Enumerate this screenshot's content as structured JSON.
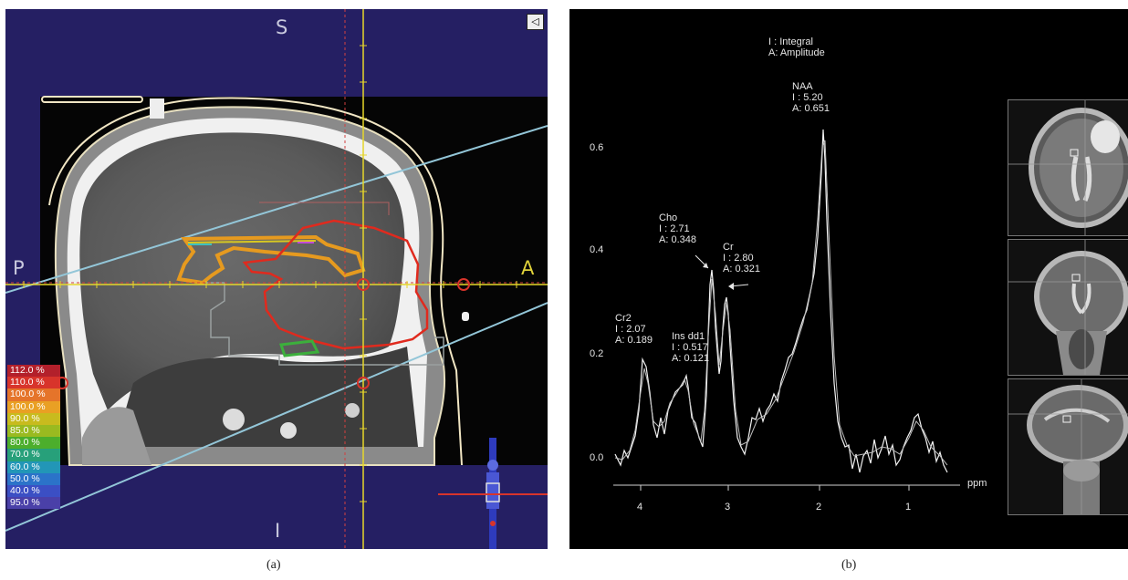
{
  "panel_a": {
    "orientation": {
      "superior": "S",
      "inferior": "I",
      "posterior": "P",
      "anterior": "A"
    },
    "collapse_icon": "◁",
    "dose_legend": [
      {
        "label": "112.0 %",
        "color": "#b3202b"
      },
      {
        "label": "110.0 %",
        "color": "#d8342b"
      },
      {
        "label": "100.0 %",
        "color": "#e5742a"
      },
      {
        "label": "100.0 %",
        "color": "#e9a024"
      },
      {
        "label": "90.0 %",
        "color": "#c8bb1e"
      },
      {
        "label": "85.0 %",
        "color": "#9aba20"
      },
      {
        "label": "80.0 %",
        "color": "#4cae2c"
      },
      {
        "label": "70.0 %",
        "color": "#27a07a"
      },
      {
        "label": "60.0 %",
        "color": "#2296b7"
      },
      {
        "label": "50.0 %",
        "color": "#2b73c9"
      },
      {
        "label": "40.0 %",
        "color": "#3b4fc4"
      },
      {
        "label": "95.0 %",
        "color": "#4a40a8"
      }
    ],
    "caption": "(a)"
  },
  "panel_b": {
    "legend_lines": [
      "I : Integral",
      "A: Amplitude"
    ],
    "peaks": [
      {
        "name": "NAA",
        "integral": "I : 5.20",
        "amplitude": "A: 0.651"
      },
      {
        "name": "Cho",
        "integral": "I : 2.71",
        "amplitude": "A: 0.348"
      },
      {
        "name": "Cr",
        "integral": "I : 2.80",
        "amplitude": "A: 0.321"
      },
      {
        "name": "Cr2",
        "integral": "I : 2.07",
        "amplitude": "A: 0.189"
      },
      {
        "name": "Ins dd1",
        "integral": "I : 0.517",
        "amplitude": "A: 0.121"
      }
    ],
    "y_ticks": [
      "0.6",
      "0.4",
      "0.2",
      "0.0"
    ],
    "x_ticks": [
      "4",
      "3",
      "2",
      "1"
    ],
    "x_unit": "ppm",
    "caption": "(b)"
  }
}
